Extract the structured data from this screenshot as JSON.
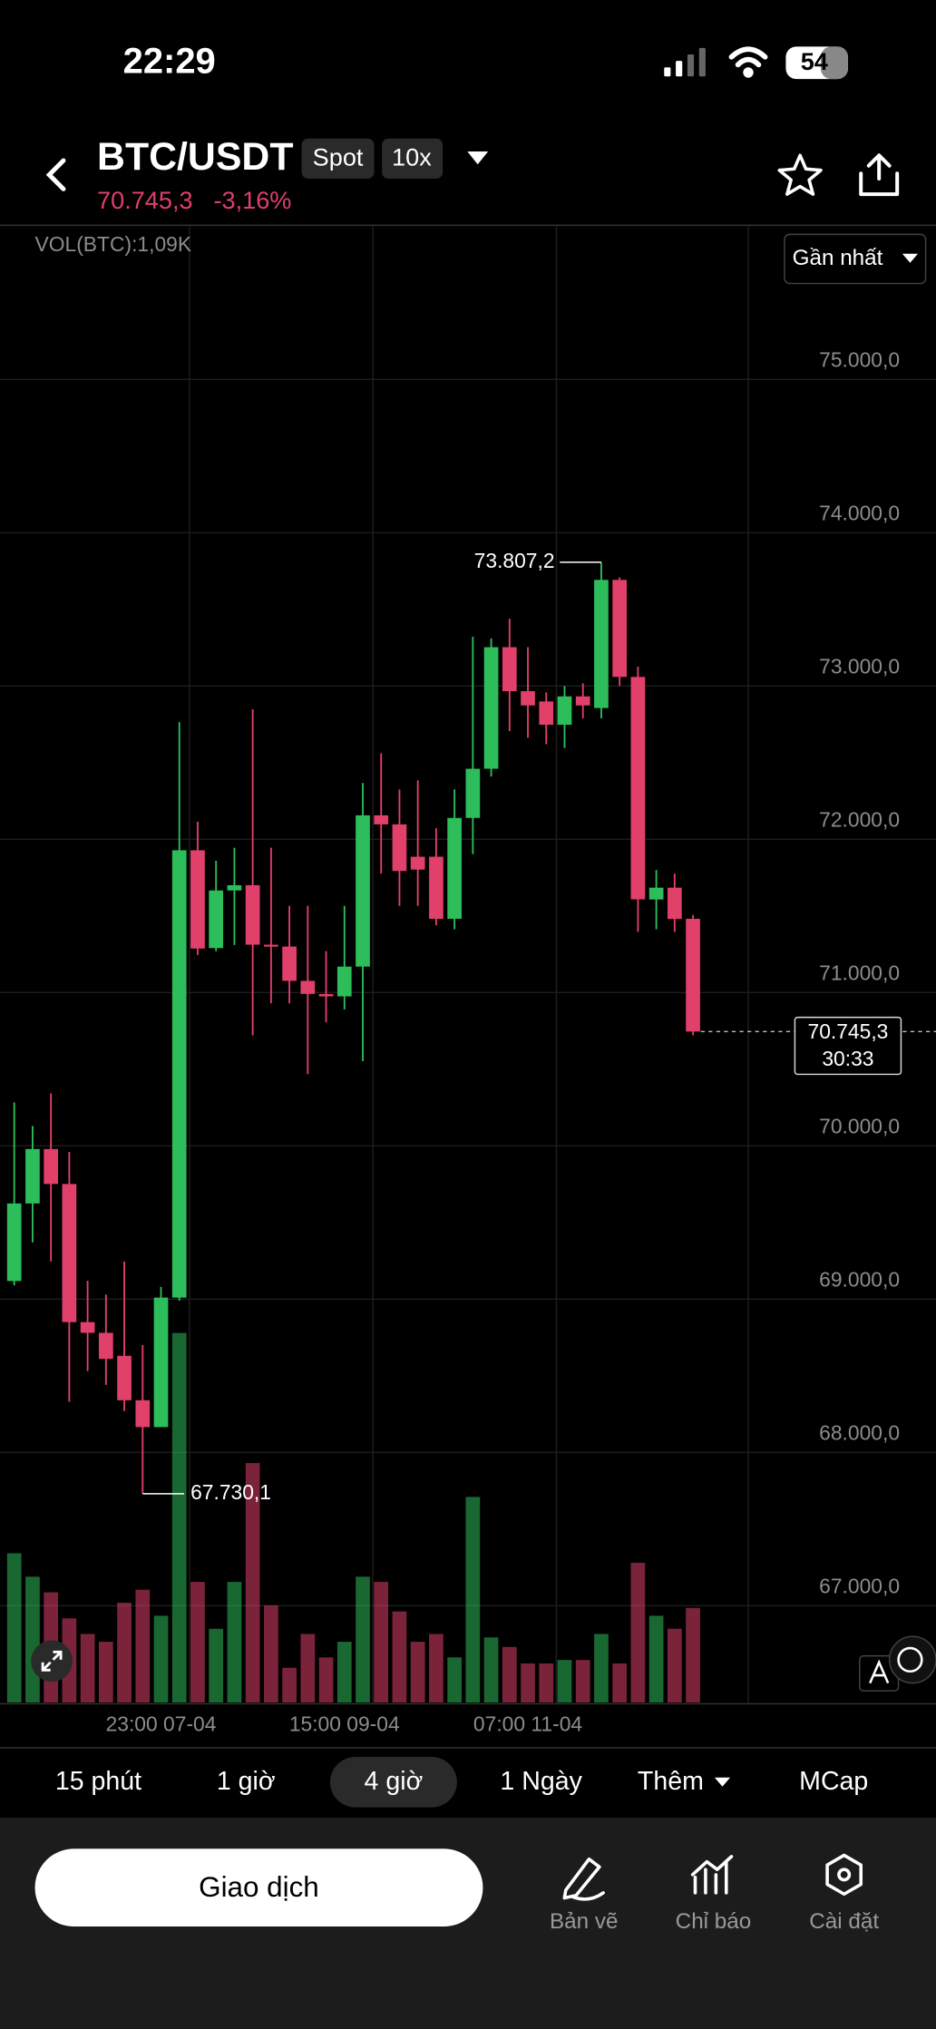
{
  "status_bar": {
    "time": "22:29",
    "battery": "54"
  },
  "header": {
    "pair": "BTC/USDT",
    "badges": [
      "Spot",
      "10x"
    ],
    "price": "70.745,3",
    "change": "-3,16%"
  },
  "chart_data": {
    "type": "candlestick",
    "volume_label": "VOL(BTC):1,09K",
    "range_button": "Gần nhất",
    "up_color": "#2dbd5a",
    "down_color": "#e0406a",
    "ylim": [
      66360,
      75997
    ],
    "yticks": [
      {
        "value": 67000,
        "label": "67.000,0"
      },
      {
        "value": 68000,
        "label": "68.000,0"
      },
      {
        "value": 69000,
        "label": "69.000,0"
      },
      {
        "value": 70000,
        "label": "70.000,0"
      },
      {
        "value": 71000,
        "label": "71.000,0"
      },
      {
        "value": 72000,
        "label": "72.000,0"
      },
      {
        "value": 73000,
        "label": "73.000,0"
      },
      {
        "value": 74000,
        "label": "74.000,0"
      },
      {
        "value": 75000,
        "label": "75.000,0"
      }
    ],
    "xticks": [
      {
        "value": 8,
        "label": "23:00 07-04"
      },
      {
        "value": 18,
        "label": "15:00 09-04"
      },
      {
        "value": 28,
        "label": "07:00 11-04"
      }
    ],
    "grid": true,
    "open": [
      69118,
      69624,
      69979,
      69751,
      68850,
      68780,
      68630,
      68340,
      68165,
      69010,
      71928,
      71290,
      71666,
      71700,
      71312,
      71300,
      71076,
      70990,
      70975,
      71169,
      72156,
      72097,
      71886,
      71886,
      71481,
      72139,
      72460,
      73253,
      72966,
      72899,
      72747,
      72932,
      72856,
      73692,
      73059,
      71607,
      71684,
      71481
    ],
    "high": [
      70283,
      70130,
      70342,
      69960,
      69120,
      69030,
      69245,
      68700,
      69080,
      72764,
      72114,
      71860,
      71945,
      72848,
      71945,
      71565,
      71565,
      71270,
      71565,
      72367,
      72561,
      72325,
      72384,
      72072,
      72325,
      73321,
      73310,
      73439,
      73253,
      72958,
      73000,
      73017,
      73807.2,
      73709,
      73126,
      71800,
      71776,
      71506
    ],
    "low": [
      69090,
      69370,
      69245,
      68330,
      68530,
      68440,
      68270,
      67730.1,
      68165,
      68990,
      71245,
      71270,
      71310,
      70720,
      70930,
      70930,
      70468,
      70806,
      70890,
      70553,
      71776,
      71565,
      71565,
      71439,
      71413,
      71903,
      72409,
      72705,
      72662,
      72620,
      72595,
      72789,
      72789,
      73000,
      71396,
      71413,
      71396,
      70721
    ],
    "close": [
      69624,
      69979,
      69751,
      68850,
      68780,
      68610,
      68340,
      68165,
      69010,
      71928,
      71287,
      71666,
      71700,
      71312,
      71304,
      71076,
      70991,
      70975,
      71169,
      72156,
      72097,
      71793,
      71802,
      71481,
      72139,
      72460,
      73253,
      72966,
      72873,
      72747,
      72932,
      72873,
      73692,
      73059,
      71608,
      71684,
      71480,
      70745.3
    ],
    "volume": [
      1.72,
      1.45,
      1.27,
      0.97,
      0.79,
      0.7,
      1.15,
      1.3,
      1.0,
      4.26,
      1.39,
      0.85,
      1.39,
      2.76,
      1.12,
      0.4,
      0.79,
      0.52,
      0.7,
      1.45,
      1.39,
      1.05,
      0.7,
      0.79,
      0.52,
      2.37,
      0.75,
      0.64,
      0.45,
      0.45,
      0.49,
      0.49,
      0.79,
      0.45,
      1.61,
      1.0,
      0.85,
      1.09
    ],
    "high_marker": {
      "value": 73807.2,
      "label": "73.807,2"
    },
    "low_marker": {
      "value": 67730.1,
      "label": "67.730,1"
    },
    "last_price": {
      "value": 70745.3,
      "label": "70.745,3"
    },
    "countdown": "30:33"
  },
  "timeframes": {
    "items": [
      "15 phút",
      "1 giờ",
      "4 giờ",
      "1 Ngày",
      "Thêm",
      "MCap"
    ],
    "active": 2
  },
  "bottom_bar": {
    "trade_button": "Giao dịch",
    "tools": [
      "Bản vẽ",
      "Chỉ báo",
      "Cài đặt"
    ]
  }
}
